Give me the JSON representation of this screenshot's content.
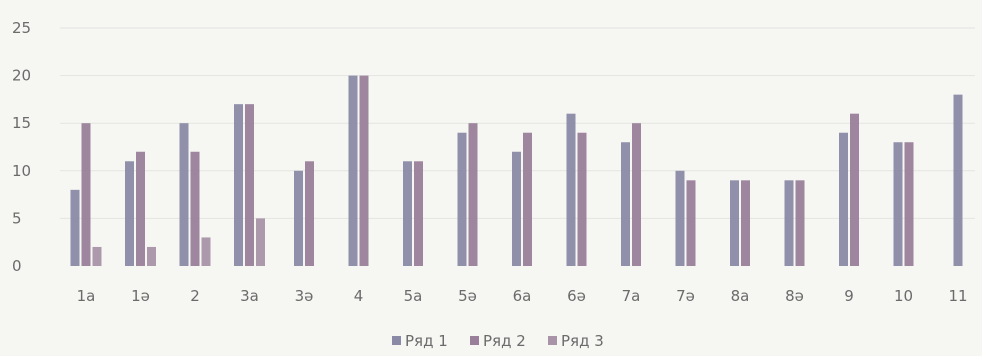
{
  "chart_data": {
    "type": "bar",
    "title": "",
    "xlabel": "",
    "ylabel": "",
    "ylim": [
      0,
      25
    ],
    "yticks": [
      0,
      5,
      10,
      15,
      20,
      25
    ],
    "grid": true,
    "legend_position": "bottom",
    "categories": [
      "1a",
      "1ə",
      "2",
      "3a",
      "3ə",
      "4",
      "5a",
      "5ə",
      "6a",
      "6ə",
      "7a",
      "7ə",
      "8a",
      "8ə",
      "9",
      "10",
      "11"
    ],
    "series": [
      {
        "name": "Ряд 1",
        "color": "#8a8aa6",
        "values": [
          8,
          11,
          15,
          17,
          10,
          20,
          11,
          14,
          12,
          16,
          13,
          10,
          9,
          9,
          14,
          13,
          18
        ]
      },
      {
        "name": "Ряд 2",
        "color": "#9a7f9a",
        "values": [
          15,
          12,
          12,
          17,
          11,
          20,
          11,
          15,
          14,
          14,
          15,
          9,
          9,
          9,
          16,
          13,
          0
        ]
      },
      {
        "name": "Ряд 3",
        "color": "#a893a8",
        "values": [
          2,
          2,
          3,
          5,
          0,
          0,
          0,
          0,
          0,
          0,
          0,
          0,
          0,
          0,
          0,
          0,
          0
        ]
      }
    ]
  }
}
